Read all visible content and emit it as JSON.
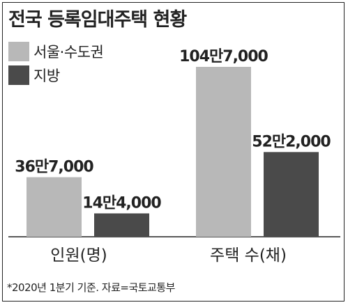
{
  "title": "전국 등록임대주택 현황",
  "source": "*2020년 1분기 기준. 자료=국토교통부",
  "colors": {
    "seoul": "#b8b8b8",
    "local": "#4a4a4a"
  },
  "chart_data": {
    "type": "bar",
    "title": "전국 등록임대주택 현황",
    "legend": "top-left",
    "grid": false,
    "categories": [
      "인원(명)",
      "주택 수(채)"
    ],
    "series": [
      {
        "name": "서울·수도권",
        "values": [
          367000,
          1047000
        ],
        "labels": [
          "36만7,000",
          "104만7,000"
        ]
      },
      {
        "name": "지방",
        "values": [
          144000,
          522000
        ],
        "labels": [
          "14만4,000",
          "52만2,000"
        ]
      }
    ],
    "ylim": [
      0,
      1047000
    ]
  }
}
